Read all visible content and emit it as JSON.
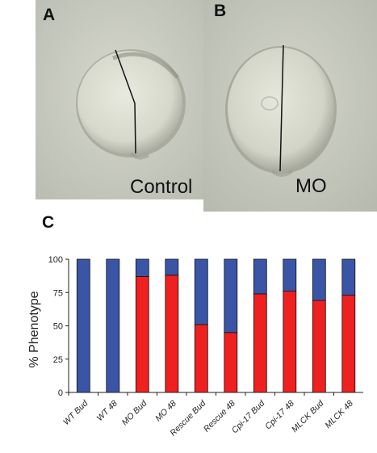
{
  "panels": {
    "a": {
      "letter": "A",
      "caption": "Control"
    },
    "b": {
      "letter": "B",
      "caption": "MO"
    },
    "c": {
      "letter": "C"
    }
  },
  "colors": {
    "normal": "#3b55a6",
    "defect": "#ef2020"
  },
  "chart_data": {
    "type": "bar",
    "stacked": true,
    "title": "",
    "xlabel": "",
    "ylabel": "% Phenotype",
    "ylim": [
      0,
      100
    ],
    "yticks": [
      "0",
      "25",
      "50",
      "75",
      "100"
    ],
    "grid": false,
    "legend": "none",
    "categories": [
      "WT Bud",
      "WT 48",
      "MO Bud",
      "MO 48",
      "Rescue Bud",
      "Rescue 48",
      "Cpi-17 Bud",
      "Cpi-17 48",
      "MLCK Bud",
      "MLCK 48"
    ],
    "series": [
      {
        "color": "#ef2020",
        "values": [
          0,
          0,
          87,
          88,
          51,
          45,
          74,
          76,
          69,
          73
        ]
      },
      {
        "color": "#3b55a6",
        "values": [
          100,
          100,
          13,
          12,
          49,
          55,
          26,
          24,
          31,
          27
        ]
      }
    ]
  }
}
